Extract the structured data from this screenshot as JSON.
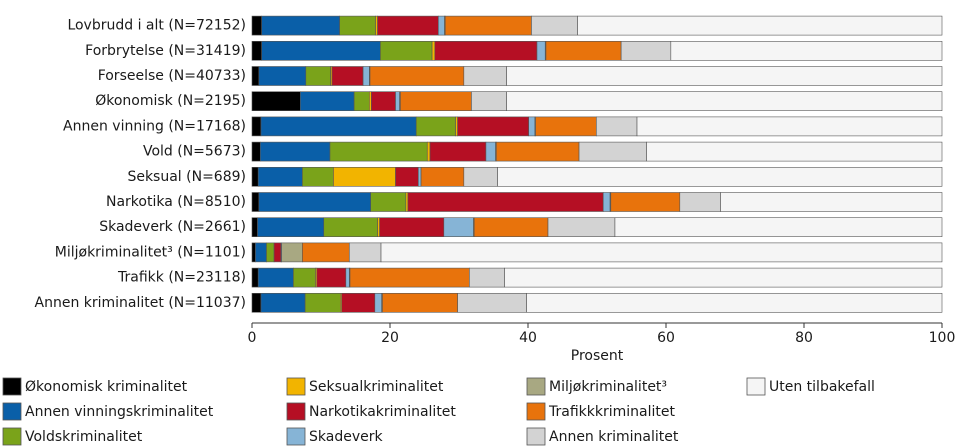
{
  "chart_data": {
    "type": "stacked_barh",
    "x_label": "Prosent",
    "categories": [
      "Lovbrudd i alt (N=72152)",
      "Forbrytelse (N=31419)",
      "Forseelse (N=40733)",
      "Økonomisk  (N=2195)",
      "Annen vinning (N=17168)",
      "Vold (N=5673)",
      "Seksual (N=689)",
      "Narkotika (N=8510)",
      "Skadeverk (N=2661)",
      "Miljøkriminalitet³ (N=1101)",
      "Trafikk (N=23118)",
      "Annen kriminalitet (N=11037)"
    ],
    "series": [
      {
        "name": "Økonomisk kriminalitet",
        "color": "#000000",
        "values": [
          1.4,
          1.4,
          1.0,
          7.0,
          1.3,
          1.2,
          0.9,
          1.0,
          0.8,
          0.5,
          0.9,
          1.3
        ]
      },
      {
        "name": "Annen vinningskriminalitet",
        "color": "#0a5fa8",
        "values": [
          11.3,
          17.2,
          6.8,
          7.8,
          22.5,
          10.1,
          6.4,
          16.2,
          9.6,
          1.6,
          5.1,
          6.4
        ]
      },
      {
        "name": "Voldskriminalitet",
        "color": "#7aa31a",
        "values": [
          5.2,
          7.5,
          3.6,
          2.2,
          5.7,
          14.1,
          4.5,
          5.1,
          7.8,
          1.1,
          3.2,
          5.1
        ]
      },
      {
        "name": "Seksualkriminalitet",
        "color": "#f2b400",
        "values": [
          0.3,
          0.4,
          0.2,
          0.3,
          0.3,
          0.4,
          9.0,
          0.3,
          0.3,
          0,
          0.2,
          0.2
        ]
      },
      {
        "name": "Narkotikakriminalitet",
        "color": "#b50f24",
        "values": [
          8.8,
          14.8,
          4.5,
          3.5,
          10.3,
          8.1,
          3.3,
          28.3,
          9.3,
          1.0,
          4.2,
          4.8
        ]
      },
      {
        "name": "Skadeverk",
        "color": "#86b4d6",
        "values": [
          0.9,
          1.2,
          0.9,
          0.6,
          0.9,
          1.4,
          0.4,
          1.0,
          4.3,
          0.1,
          0.5,
          1.0
        ]
      },
      {
        "name": "Miljøkriminalitet³",
        "color": "#a8a882",
        "values": [
          0.1,
          0.1,
          0.1,
          0.1,
          0.1,
          0.1,
          0,
          0.1,
          0.1,
          3.0,
          0.1,
          0.1
        ]
      },
      {
        "name": "Trafikkkriminalitet",
        "color": "#e8730c",
        "values": [
          12.5,
          10.9,
          13.6,
          10.3,
          8.8,
          12.0,
          6.2,
          10.0,
          10.7,
          6.8,
          17.3,
          10.9
        ]
      },
      {
        "name": "Annen kriminalitet",
        "color": "#d3d3d3",
        "values": [
          6.7,
          7.2,
          6.2,
          5.1,
          5.9,
          9.8,
          4.9,
          5.9,
          9.7,
          4.6,
          5.1,
          10.0
        ]
      },
      {
        "name": "Uten tilbakefall",
        "color": "#f5f5f5",
        "values": [
          52.8,
          39.3,
          63.1,
          63.1,
          44.2,
          42.8,
          64.4,
          32.1,
          47.4,
          81.3,
          63.4,
          60.2
        ]
      }
    ],
    "xlim": [
      0,
      100
    ],
    "xticks": [
      0,
      20,
      40,
      60,
      80,
      100
    ]
  }
}
